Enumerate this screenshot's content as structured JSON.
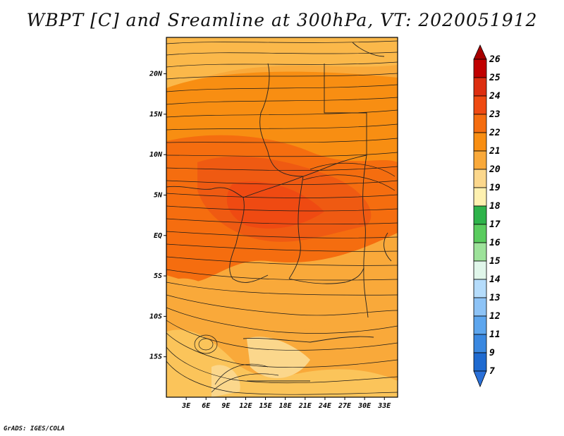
{
  "title": "WBPT [C] and Sreamline at 300hPa, VT: 2020051912",
  "credit": "GrADS: IGES/COLA",
  "map": {
    "lat_labels": [
      {
        "label": "20N",
        "lat": 20
      },
      {
        "label": "15N",
        "lat": 15
      },
      {
        "label": "10N",
        "lat": 10
      },
      {
        "label": "5N",
        "lat": 5
      },
      {
        "label": "EQ",
        "lat": 0
      },
      {
        "label": "5S",
        "lat": -5
      },
      {
        "label": "10S",
        "lat": -10
      },
      {
        "label": "15S",
        "lat": -15
      }
    ],
    "lon_labels": [
      {
        "label": "3E",
        "lon": 3
      },
      {
        "label": "6E",
        "lon": 6
      },
      {
        "label": "9E",
        "lon": 9
      },
      {
        "label": "12E",
        "lon": 12
      },
      {
        "label": "15E",
        "lon": 15
      },
      {
        "label": "18E",
        "lon": 18
      },
      {
        "label": "21E",
        "lon": 21
      },
      {
        "label": "24E",
        "lon": 24
      },
      {
        "label": "27E",
        "lon": 27
      },
      {
        "label": "30E",
        "lon": 30
      },
      {
        "label": "33E",
        "lon": 33
      }
    ],
    "lon_range": [
      0,
      35
    ],
    "lat_range": [
      -20,
      24.5
    ]
  },
  "colorbar": {
    "labels": [
      "26",
      "25",
      "24",
      "23",
      "22",
      "21",
      "20",
      "19",
      "18",
      "17",
      "16",
      "15",
      "14",
      "13",
      "12",
      "11",
      "9",
      "7"
    ],
    "colors": [
      "#c00000",
      "#dd2e10",
      "#ef4a12",
      "#f56d0f",
      "#f88e12",
      "#f9a93a",
      "#fbd78c",
      "#fef1b0",
      "#2eb34a",
      "#5acc5e",
      "#9de29a",
      "#e0f6ea",
      "#b5dcfb",
      "#8dc3f6",
      "#5da6ee",
      "#3a88e0",
      "#1e6ad0"
    ],
    "top_color": "#a80000",
    "bottom_color": "#2a70d8"
  }
}
